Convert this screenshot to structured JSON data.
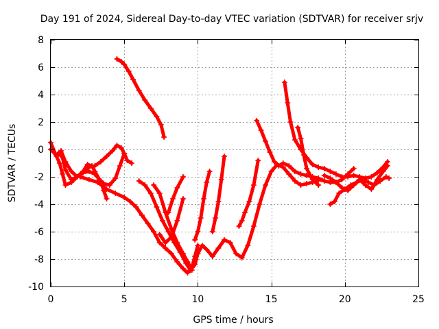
{
  "chart_data": {
    "type": "scatter",
    "title": "Day 191 of 2024, Sidereal Day-to-day VTEC variation (SDTVAR) for receiver srjv",
    "xlabel": "GPS time / hours",
    "ylabel": "SDTVAR / TECUs",
    "xlim": [
      0,
      25
    ],
    "ylim": [
      -10,
      8
    ],
    "xticks": [
      0,
      5,
      10,
      15,
      20,
      25
    ],
    "yticks": [
      -10,
      -8,
      -6,
      -4,
      -2,
      0,
      2,
      4,
      6,
      8
    ],
    "grid": true,
    "marker": "plus",
    "color": "#ff0000",
    "series": [
      {
        "x": [
          0.0,
          0.3,
          0.6,
          0.8,
          1.0,
          1.4,
          1.8,
          2.2,
          2.6,
          3.0,
          3.4,
          3.6,
          3.8
        ],
        "y": [
          0.5,
          -0.3,
          -1.0,
          -1.8,
          -2.6,
          -2.4,
          -2.0,
          -1.7,
          -1.6,
          -1.8,
          -2.3,
          -3.0,
          -3.6
        ]
      },
      {
        "x": [
          0.0,
          0.2,
          0.4,
          0.6,
          0.8,
          1.0,
          1.4,
          1.8,
          2.2,
          2.6,
          3.0,
          3.4,
          3.8,
          4.2,
          4.5,
          4.8,
          5.0,
          5.2,
          5.5
        ],
        "y": [
          0.0,
          -0.2,
          -0.5,
          -0.3,
          -0.6,
          -1.5,
          -2.2,
          -2.0,
          -1.6,
          -1.3,
          -1.2,
          -0.9,
          -0.5,
          -0.1,
          0.3,
          0.1,
          -0.3,
          -0.8,
          -1.0
        ]
      },
      {
        "x": [
          0.5,
          0.7,
          1.0,
          1.4,
          1.8,
          2.2,
          2.5,
          2.8,
          3.0,
          3.3,
          3.6,
          4.0,
          4.4,
          4.7,
          5.0
        ],
        "y": [
          -0.3,
          -0.1,
          -0.9,
          -1.6,
          -2.0,
          -1.6,
          -1.1,
          -1.2,
          -1.6,
          -2.2,
          -2.5,
          -2.6,
          -2.1,
          -1.2,
          -0.3
        ]
      },
      {
        "x": [
          4.5,
          4.8,
          5.0,
          5.3,
          5.6,
          6.0,
          6.4,
          6.8,
          7.2,
          7.5,
          7.7
        ],
        "y": [
          6.6,
          6.4,
          6.2,
          5.7,
          5.1,
          4.3,
          3.6,
          3.0,
          2.4,
          1.8,
          0.9
        ]
      },
      {
        "x": [
          2.0,
          2.6,
          3.2,
          3.8,
          4.4,
          5.0,
          5.4,
          5.8,
          6.2,
          6.6,
          7.0,
          7.4,
          7.8,
          8.2,
          8.6,
          9.0,
          9.3,
          9.6,
          9.8,
          10.0
        ],
        "y": [
          -2.0,
          -2.2,
          -2.4,
          -2.9,
          -3.2,
          -3.5,
          -3.8,
          -4.2,
          -4.8,
          -5.4,
          -6.0,
          -6.8,
          -7.2,
          -7.6,
          -8.2,
          -8.7,
          -9.0,
          -8.6,
          -7.8,
          -7.0
        ]
      },
      {
        "x": [
          6.0,
          6.4,
          6.8,
          7.2,
          7.6,
          8.0,
          8.4,
          8.8,
          9.2,
          9.5,
          9.8,
          10.0,
          10.3,
          10.6,
          11.0,
          11.4,
          11.8,
          12.2,
          12.6,
          13.0,
          13.4,
          13.8,
          14.2,
          14.6,
          15.0,
          15.4,
          15.8,
          16.2,
          16.6,
          17.0,
          17.4,
          17.8,
          18.2,
          18.6
        ],
        "y": [
          -2.3,
          -2.6,
          -3.2,
          -4.2,
          -5.2,
          -6.0,
          -6.8,
          -7.5,
          -8.3,
          -8.8,
          -8.4,
          -7.6,
          -7.0,
          -7.3,
          -7.8,
          -7.2,
          -6.6,
          -6.8,
          -7.6,
          -7.9,
          -7.0,
          -5.6,
          -4.0,
          -2.6,
          -1.6,
          -1.1,
          -1.3,
          -1.8,
          -2.3,
          -2.6,
          -2.5,
          -2.4,
          -2.2,
          -2.3
        ]
      },
      {
        "x": [
          7.0,
          7.4,
          7.8,
          8.2,
          8.6,
          9.0,
          9.3,
          9.6
        ],
        "y": [
          -2.6,
          -3.2,
          -4.6,
          -5.8,
          -6.8,
          -7.6,
          -8.2,
          -8.8
        ]
      },
      {
        "x": [
          7.4,
          7.8,
          8.2,
          8.6,
          9.0
        ],
        "y": [
          -6.2,
          -6.8,
          -6.4,
          -5.2,
          -3.6
        ]
      },
      {
        "x": [
          8.0,
          8.3,
          8.6,
          9.0
        ],
        "y": [
          -4.6,
          -3.6,
          -2.8,
          -2.0
        ]
      },
      {
        "x": [
          9.8,
          10.0,
          10.2,
          10.4,
          10.6,
          10.8
        ],
        "y": [
          -6.6,
          -6.0,
          -5.0,
          -3.6,
          -2.4,
          -1.6
        ]
      },
      {
        "x": [
          11.0,
          11.2,
          11.4,
          11.6,
          11.8
        ],
        "y": [
          -6.0,
          -5.0,
          -3.8,
          -2.2,
          -0.5
        ]
      },
      {
        "x": [
          12.8,
          13.0,
          13.2,
          13.5,
          13.8,
          14.1
        ],
        "y": [
          -5.6,
          -5.2,
          -4.6,
          -3.8,
          -2.6,
          -0.8
        ]
      },
      {
        "x": [
          14.0,
          14.3,
          14.6,
          14.9,
          15.2,
          15.5,
          15.8,
          16.2,
          16.6,
          17.0,
          17.4,
          17.8,
          18.2,
          18.6,
          19.0,
          19.4,
          19.8,
          20.2,
          20.6
        ],
        "y": [
          2.1,
          1.4,
          0.6,
          -0.2,
          -0.9,
          -1.2,
          -1.0,
          -1.2,
          -1.6,
          -1.8,
          -1.9,
          -2.0,
          -2.1,
          -2.3,
          -2.4,
          -2.4,
          -2.2,
          -1.8,
          -1.4
        ]
      },
      {
        "x": [
          15.9,
          16.1,
          16.3,
          16.6,
          17.0,
          17.4,
          17.8,
          18.2,
          18.6,
          19.0,
          19.4,
          19.8,
          20.2,
          20.6,
          21.0,
          21.4,
          21.8,
          22.2,
          22.6,
          22.9
        ],
        "y": [
          4.9,
          3.4,
          2.0,
          0.7,
          0.0,
          -0.6,
          -1.1,
          -1.3,
          -1.4,
          -1.6,
          -1.8,
          -2.0,
          -2.0,
          -1.9,
          -2.0,
          -2.1,
          -2.0,
          -1.7,
          -1.3,
          -0.9
        ]
      },
      {
        "x": [
          16.8,
          17.0,
          17.2,
          17.4,
          17.8,
          18.2
        ],
        "y": [
          1.6,
          0.8,
          -0.4,
          -1.4,
          -2.2,
          -2.6
        ]
      },
      {
        "x": [
          19.0,
          19.3,
          19.6,
          20.0,
          20.4,
          20.8,
          21.2,
          21.6,
          22.0,
          22.4,
          22.8,
          23.0
        ],
        "y": [
          -4.0,
          -3.8,
          -3.2,
          -2.9,
          -2.6,
          -2.4,
          -2.2,
          -2.4,
          -2.6,
          -2.3,
          -2.0,
          -2.1
        ]
      },
      {
        "x": [
          18.6,
          19.0,
          19.4,
          19.8,
          20.2,
          20.6,
          21.0,
          21.4,
          21.8,
          22.2,
          22.6,
          22.9
        ],
        "y": [
          -1.9,
          -2.1,
          -2.4,
          -2.8,
          -3.0,
          -2.6,
          -2.2,
          -2.6,
          -2.9,
          -2.2,
          -1.6,
          -1.2
        ]
      }
    ]
  }
}
